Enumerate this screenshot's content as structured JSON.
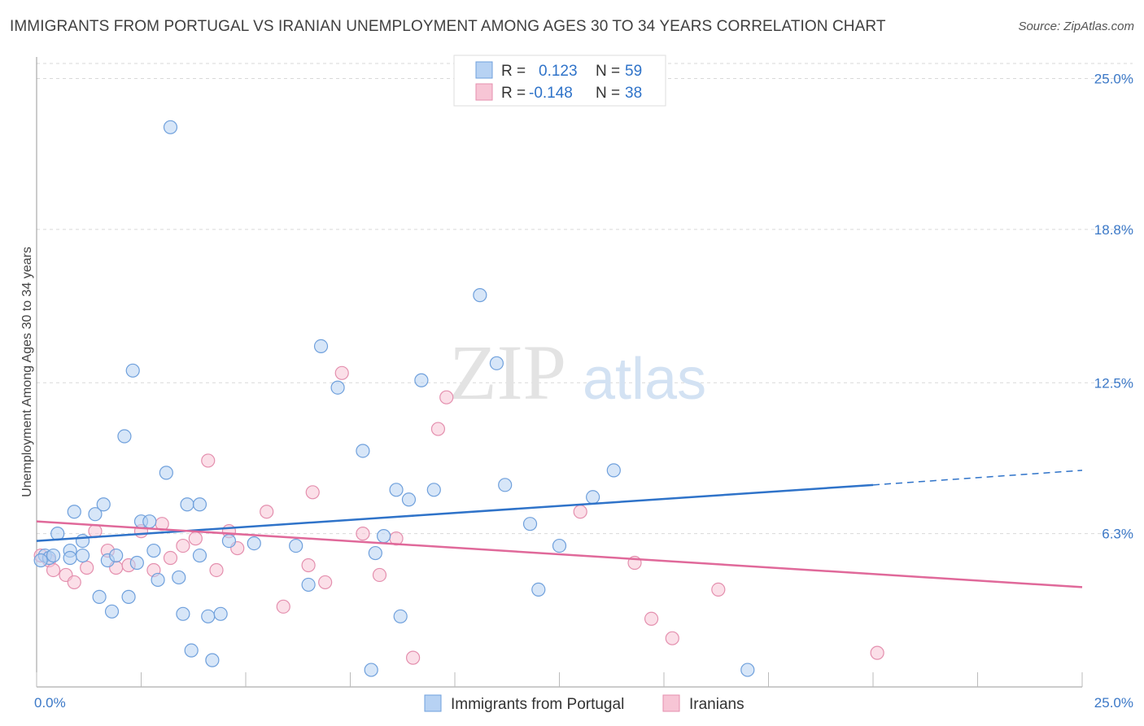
{
  "title": "IMMIGRANTS FROM PORTUGAL VS IRANIAN UNEMPLOYMENT AMONG AGES 30 TO 34 YEARS CORRELATION CHART",
  "source": "Source: ZipAtlas.com",
  "watermark": {
    "zip": "ZIP",
    "atlas": "atlas"
  },
  "legend": {
    "rows": [
      {
        "r_label": "R =",
        "r_value": "0.123",
        "n_label": "N =",
        "n_value": "59"
      },
      {
        "r_label": "R =",
        "r_value": "-0.148",
        "n_label": "N =",
        "n_value": "38"
      }
    ]
  },
  "colors": {
    "blue_fill": "#b7d2f3",
    "blue_stroke": "#6fa0dc",
    "blue_line": "#2f73c9",
    "pink_fill": "#f7c5d5",
    "pink_stroke": "#e48fae",
    "pink_line": "#e0699a",
    "tick_text": "#3b78c7",
    "grid": "#d9d9d9"
  },
  "chart_data": {
    "type": "scatter",
    "xlabel": "",
    "ylabel": "Unemployment Among Ages 30 to 34 years",
    "xlim": [
      0,
      25
    ],
    "ylim": [
      0,
      25
    ],
    "x_tick_labels": [
      "0.0%",
      "25.0%"
    ],
    "y_ticks": [
      {
        "value": 6.3,
        "label": "6.3%"
      },
      {
        "value": 12.5,
        "label": "12.5%"
      },
      {
        "value": 18.8,
        "label": "18.8%"
      },
      {
        "value": 25.0,
        "label": "25.0%"
      }
    ],
    "grid": true,
    "legend_position": "top-center",
    "series": [
      {
        "name": "Immigrants from Portugal",
        "color": "#b7d2f3",
        "trend": {
          "x0": 0,
          "y0": 6.0,
          "x1": 20,
          "y1": 8.3,
          "dashed_to_x": 25,
          "dashed_to_y": 8.9
        },
        "points": [
          [
            0.2,
            5.4
          ],
          [
            0.3,
            5.3
          ],
          [
            0.5,
            6.3
          ],
          [
            0.8,
            5.6
          ],
          [
            0.8,
            5.3
          ],
          [
            0.9,
            7.2
          ],
          [
            1.1,
            6.0
          ],
          [
            1.1,
            5.4
          ],
          [
            1.4,
            7.1
          ],
          [
            1.5,
            3.7
          ],
          [
            1.6,
            7.5
          ],
          [
            1.7,
            5.2
          ],
          [
            1.8,
            3.1
          ],
          [
            1.9,
            5.4
          ],
          [
            2.1,
            10.3
          ],
          [
            2.2,
            3.7
          ],
          [
            2.3,
            13.0
          ],
          [
            2.4,
            5.1
          ],
          [
            2.5,
            6.8
          ],
          [
            2.7,
            6.8
          ],
          [
            2.8,
            5.6
          ],
          [
            2.9,
            4.4
          ],
          [
            3.1,
            8.8
          ],
          [
            3.2,
            23.0
          ],
          [
            3.4,
            4.5
          ],
          [
            3.5,
            3.0
          ],
          [
            3.6,
            7.5
          ],
          [
            3.7,
            1.5
          ],
          [
            3.9,
            5.4
          ],
          [
            3.9,
            7.5
          ],
          [
            4.1,
            2.9
          ],
          [
            4.2,
            1.1
          ],
          [
            4.4,
            3.0
          ],
          [
            4.6,
            6.0
          ],
          [
            5.2,
            5.9
          ],
          [
            6.2,
            5.8
          ],
          [
            6.5,
            4.2
          ],
          [
            6.8,
            14.0
          ],
          [
            7.2,
            12.3
          ],
          [
            7.8,
            9.7
          ],
          [
            8.0,
            0.7
          ],
          [
            8.1,
            5.5
          ],
          [
            8.3,
            6.2
          ],
          [
            8.6,
            8.1
          ],
          [
            8.7,
            2.9
          ],
          [
            8.9,
            7.7
          ],
          [
            9.2,
            12.6
          ],
          [
            9.5,
            8.1
          ],
          [
            10.6,
            16.1
          ],
          [
            11.0,
            13.3
          ],
          [
            11.2,
            8.3
          ],
          [
            11.8,
            6.7
          ],
          [
            12.0,
            4.0
          ],
          [
            12.5,
            5.8
          ],
          [
            13.3,
            7.8
          ],
          [
            13.8,
            8.9
          ],
          [
            17.0,
            0.7
          ],
          [
            0.1,
            5.2
          ],
          [
            0.4,
            5.4
          ]
        ]
      },
      {
        "name": "Iranians",
        "color": "#f7c5d5",
        "trend": {
          "x0": 0,
          "y0": 6.8,
          "x1": 25,
          "y1": 4.1
        },
        "points": [
          [
            0.1,
            5.4
          ],
          [
            0.3,
            5.2
          ],
          [
            0.4,
            4.8
          ],
          [
            0.7,
            4.6
          ],
          [
            0.9,
            4.3
          ],
          [
            1.2,
            4.9
          ],
          [
            1.4,
            6.4
          ],
          [
            1.7,
            5.6
          ],
          [
            1.9,
            4.9
          ],
          [
            2.2,
            5.0
          ],
          [
            2.5,
            6.4
          ],
          [
            2.8,
            4.8
          ],
          [
            3.0,
            6.7
          ],
          [
            3.2,
            5.3
          ],
          [
            3.5,
            5.8
          ],
          [
            3.8,
            6.1
          ],
          [
            4.1,
            9.3
          ],
          [
            4.3,
            4.8
          ],
          [
            4.6,
            6.4
          ],
          [
            4.8,
            5.7
          ],
          [
            5.5,
            7.2
          ],
          [
            5.9,
            3.3
          ],
          [
            6.6,
            8.0
          ],
          [
            6.5,
            5.0
          ],
          [
            6.9,
            4.3
          ],
          [
            7.3,
            12.9
          ],
          [
            7.8,
            6.3
          ],
          [
            8.2,
            4.6
          ],
          [
            8.6,
            6.1
          ],
          [
            9.0,
            1.2
          ],
          [
            9.6,
            10.6
          ],
          [
            9.8,
            11.9
          ],
          [
            13.0,
            7.2
          ],
          [
            14.3,
            5.1
          ],
          [
            14.7,
            2.8
          ],
          [
            15.2,
            2.0
          ],
          [
            16.3,
            4.0
          ],
          [
            20.1,
            1.4
          ]
        ]
      }
    ]
  }
}
